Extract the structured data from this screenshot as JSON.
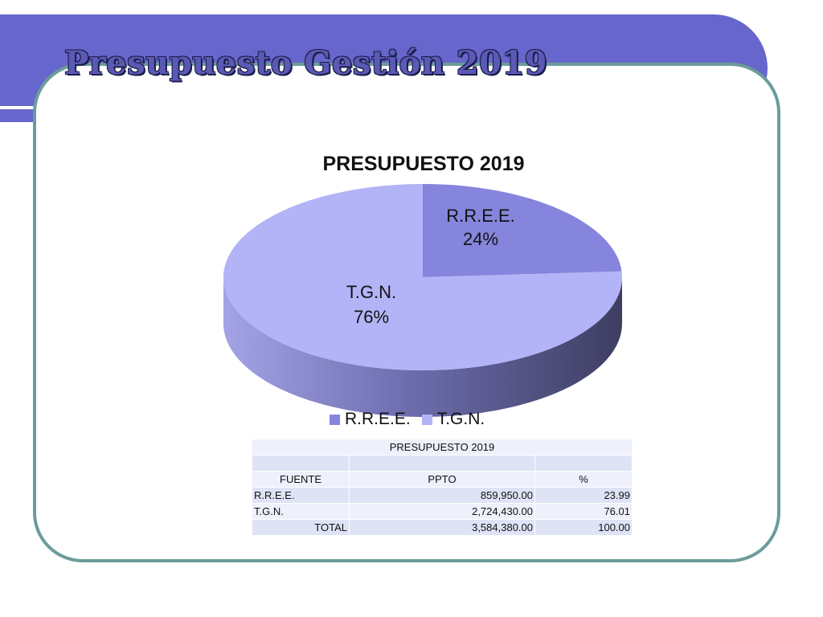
{
  "slide": {
    "title": "Presupuesto Gestión 2019"
  },
  "colors": {
    "banner": "#6666cc",
    "frame": "#6b9c9a",
    "rree": "#8585dd",
    "tgn": "#b3b3f7"
  },
  "chart_data": {
    "type": "pie",
    "title": "PRESUPUESTO 2019",
    "categories": [
      "R.R.E.E.",
      "T.G.N."
    ],
    "values": [
      24,
      76
    ],
    "labels": [
      {
        "name": "R.R.E.E.",
        "pct": "24%"
      },
      {
        "name": "T.G.N.",
        "pct": "76%"
      }
    ],
    "legend": [
      "R.R.E.E.",
      "T.G.N."
    ],
    "legend_position": "bottom"
  },
  "table": {
    "title": "PRESUPUESTO 2019",
    "headers": [
      "FUENTE",
      "PPTO",
      "%"
    ],
    "rows": [
      [
        "R.R.E.E.",
        "859,950.00",
        "23.99"
      ],
      [
        "T.G.N.",
        "2,724,430.00",
        "76.01"
      ]
    ],
    "total": [
      "TOTAL",
      "3,584,380.00",
      "100.00"
    ]
  }
}
